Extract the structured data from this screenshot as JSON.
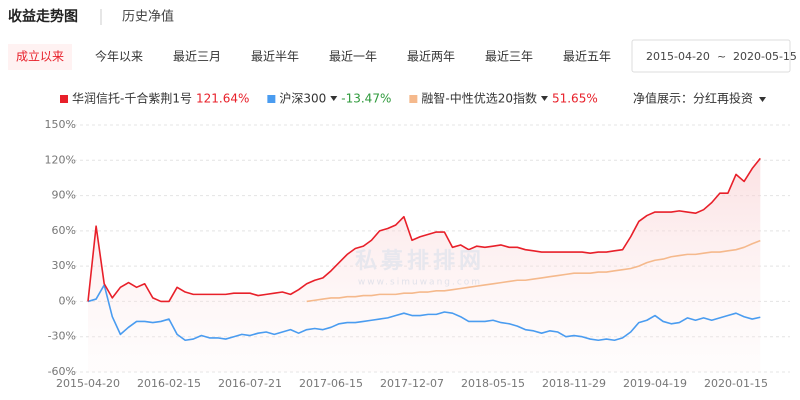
{
  "header": {
    "title": "收益走势图",
    "tab": "历史净值"
  },
  "periods": [
    "成立以来",
    "今年以来",
    "最近三月",
    "最近半年",
    "最近一年",
    "最近两年",
    "最近三年",
    "最近五年"
  ],
  "active_period": 0,
  "date_range": {
    "start": "2015-04-20",
    "separator": "~",
    "end": "2020-05-15"
  },
  "display_option": "净值展示：分红再投资",
  "watermark": {
    "text": "私募排排网",
    "url": "www.simuwang.com"
  },
  "chart_data": {
    "type": "line",
    "categories": [
      "2015-04-20",
      null,
      null,
      null,
      null,
      null,
      null,
      null,
      null,
      null,
      "2016-02-15",
      null,
      null,
      null,
      null,
      null,
      null,
      null,
      null,
      null,
      "2016-07-21",
      null,
      null,
      null,
      null,
      null,
      null,
      null,
      null,
      null,
      "2017-06-15",
      null,
      null,
      null,
      null,
      null,
      null,
      null,
      null,
      null,
      "2017-12-07",
      null,
      null,
      null,
      null,
      null,
      null,
      null,
      null,
      null,
      "2018-05-15",
      null,
      null,
      null,
      null,
      null,
      null,
      null,
      null,
      null,
      "2018-11-29",
      null,
      null,
      null,
      null,
      null,
      null,
      null,
      null,
      null,
      "2019-04-19",
      null,
      null,
      null,
      null,
      null,
      null,
      null,
      null,
      null,
      "2020-01-15",
      null,
      null,
      null
    ],
    "series": [
      {
        "name": "华润信托-千合紫荆1号",
        "color": "#e8202a",
        "change": "121.64%",
        "change_color": "#e8202a",
        "dropdown": false,
        "values": [
          0,
          64,
          15,
          3,
          12,
          16,
          12,
          15,
          3,
          0,
          0,
          12,
          8,
          6,
          6,
          6,
          6,
          6,
          7,
          7,
          7,
          5,
          6,
          7,
          8,
          6,
          10,
          15,
          18,
          20,
          26,
          33,
          40,
          45,
          47,
          52,
          60,
          62,
          65,
          72,
          52,
          55,
          57,
          59,
          59,
          46,
          48,
          44,
          47,
          46,
          47,
          48,
          46,
          46,
          44,
          43,
          42,
          42,
          42,
          42,
          42,
          42,
          41,
          42,
          42,
          43,
          44,
          55,
          68,
          73,
          76,
          76,
          76,
          77,
          76,
          75,
          78,
          84,
          92,
          92,
          108,
          102,
          113,
          121.64
        ]
      },
      {
        "name": "沪深300",
        "color": "#4a9cf0",
        "change": "-13.47%",
        "change_color": "#2f9a3c",
        "dropdown": true,
        "values": [
          0,
          2,
          14,
          -13,
          -28,
          -22,
          -17,
          -17,
          -18,
          -17,
          -15,
          -28,
          -33,
          -32,
          -29,
          -31,
          -31,
          -32,
          -30,
          -28,
          -29,
          -27,
          -26,
          -28,
          -26,
          -24,
          -27,
          -24,
          -23,
          -24,
          -22,
          -19,
          -18,
          -18,
          -17,
          -16,
          -15,
          -14,
          -12,
          -10,
          -12,
          -12,
          -11,
          -11,
          -9,
          -10,
          -13,
          -17,
          -17,
          -17,
          -16,
          -18,
          -19,
          -21,
          -24,
          -25,
          -27,
          -25,
          -26,
          -30,
          -29,
          -30,
          -32,
          -33,
          -32,
          -33,
          -31,
          -26,
          -18,
          -16,
          -12,
          -17,
          -19,
          -18,
          -14,
          -16,
          -14,
          -16,
          -14,
          -12,
          -10,
          -13,
          -15,
          -13.47
        ]
      },
      {
        "name": "融智-中性优选20指数",
        "color": "#f5b98c",
        "change": "51.65%",
        "change_color": "#e8202a",
        "dropdown": true,
        "values": [
          null,
          null,
          null,
          null,
          null,
          null,
          null,
          null,
          null,
          null,
          null,
          null,
          null,
          null,
          null,
          null,
          null,
          null,
          null,
          null,
          null,
          null,
          null,
          null,
          null,
          null,
          null,
          0,
          1,
          2,
          3,
          3,
          4,
          4,
          5,
          5,
          6,
          6,
          6,
          7,
          7,
          8,
          8,
          9,
          9,
          10,
          11,
          12,
          13,
          14,
          15,
          16,
          17,
          18,
          18,
          19,
          20,
          21,
          22,
          23,
          24,
          24,
          24,
          25,
          25,
          26,
          27,
          28,
          30,
          33,
          35,
          36,
          38,
          39,
          40,
          40,
          41,
          42,
          42,
          43,
          44,
          46,
          49,
          51.65
        ]
      }
    ],
    "ylim": [
      -60,
      150
    ],
    "yticks": [
      {
        "value": -60,
        "label": "-60%"
      },
      {
        "value": -30,
        "label": "-30%"
      },
      {
        "value": 0,
        "label": "0%"
      },
      {
        "value": 30,
        "label": "30%"
      },
      {
        "value": 60,
        "label": "60%"
      },
      {
        "value": 90,
        "label": "90%"
      },
      {
        "value": 120,
        "label": "120%"
      },
      {
        "value": 150,
        "label": "150%"
      }
    ],
    "grid": true,
    "area_fill_series": 0
  }
}
